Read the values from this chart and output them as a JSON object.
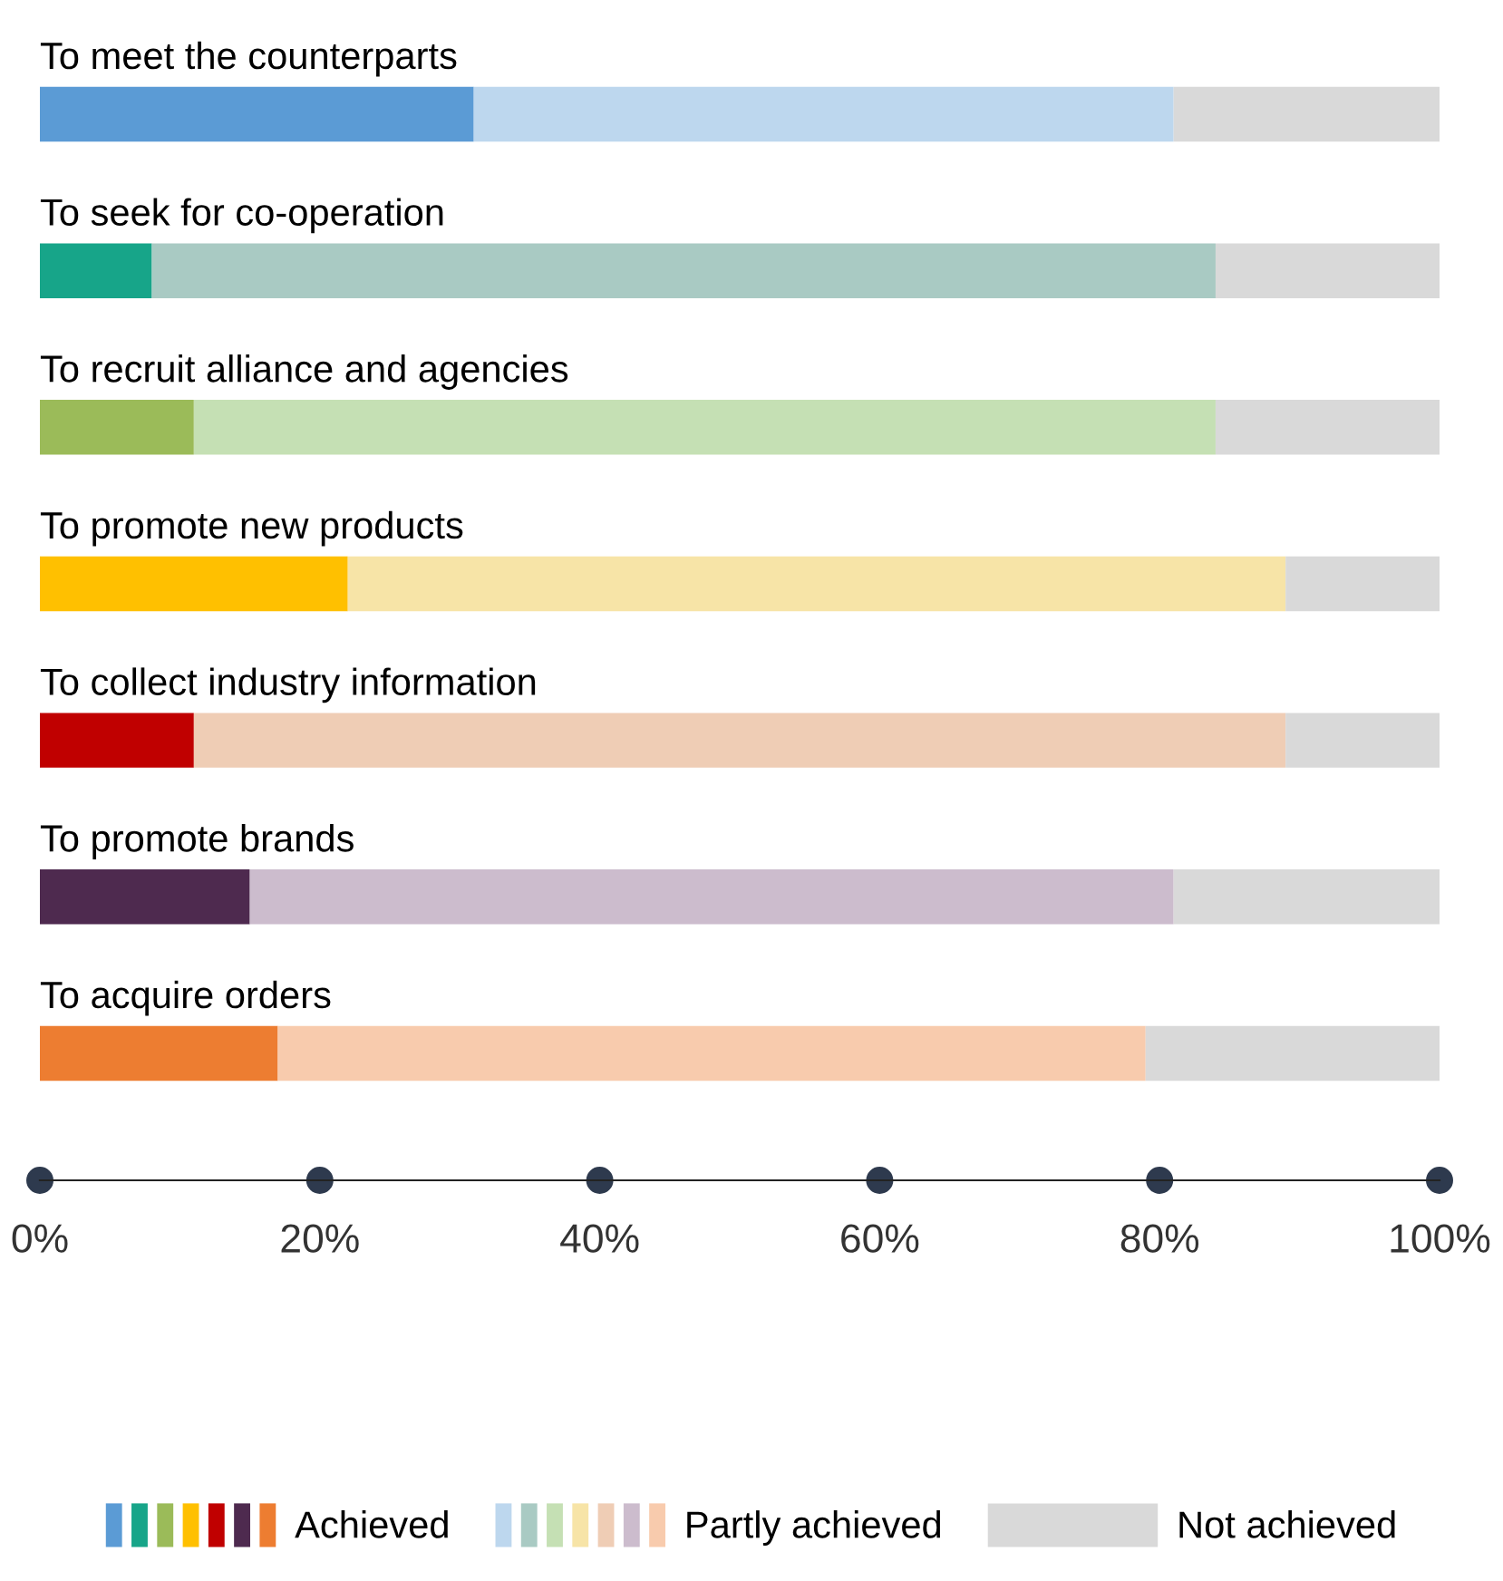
{
  "chart_data": {
    "type": "bar",
    "orientation": "horizontal",
    "stacked": true,
    "categories": [
      "To meet the counterparts",
      "To seek for co-operation",
      "To recruit alliance and agencies",
      "To promote new products",
      "To collect industry information",
      "To promote brands",
      "To acquire orders"
    ],
    "series": [
      {
        "name": "Achieved",
        "colors": [
          "#5b9bd5",
          "#17a589",
          "#9bbb59",
          "#ffc000",
          "#c00000",
          "#4e2a4f",
          "#ed7d31"
        ],
        "values": [
          31,
          8,
          11,
          22,
          11,
          15,
          17
        ]
      },
      {
        "name": "Partly achieved",
        "colors": [
          "#bdd7ee",
          "#a9cac3",
          "#c5e0b4",
          "#f7e4a7",
          "#efcdb5",
          "#ccbccd",
          "#f8cbad"
        ],
        "values": [
          50,
          76,
          73,
          67,
          78,
          66,
          62
        ]
      },
      {
        "name": "Not achieved",
        "colors": [
          "#d9d9d9",
          "#d9d9d9",
          "#d9d9d9",
          "#d9d9d9",
          "#d9d9d9",
          "#d9d9d9",
          "#d9d9d9"
        ],
        "values": [
          19,
          16,
          16,
          11,
          11,
          19,
          21
        ]
      }
    ],
    "xlim": [
      0,
      100
    ],
    "xticks": [
      {
        "value": 0,
        "label": "0%"
      },
      {
        "value": 20,
        "label": "20%"
      },
      {
        "value": 40,
        "label": "40%"
      },
      {
        "value": 60,
        "label": "60%"
      },
      {
        "value": 80,
        "label": "80%"
      },
      {
        "value": 100,
        "label": "100%"
      }
    ],
    "legend": "bottom"
  }
}
